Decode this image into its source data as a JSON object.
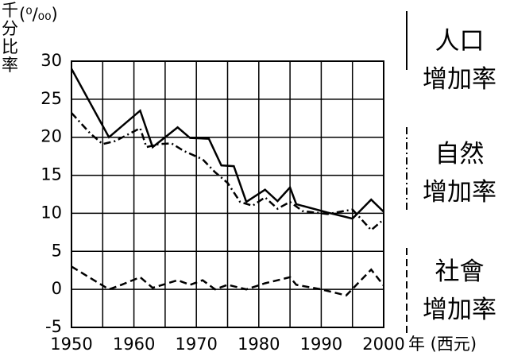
{
  "chart_data": {
    "type": "line",
    "y_label": "千分比率",
    "y_unit": "(⁰/₀₀)",
    "x_label": "年 (西元)",
    "xlim": [
      1950,
      2000
    ],
    "xticks": [
      1950,
      1960,
      1970,
      1980,
      1990,
      2000
    ],
    "x_minor_ticks": [
      1955,
      1965,
      1975,
      1985,
      1995
    ],
    "ylim": [
      -5,
      30
    ],
    "yticks": [
      -5,
      0,
      5,
      10,
      15,
      20,
      25,
      30
    ],
    "grid": true,
    "series": [
      {
        "name": "人口\n增加率",
        "color": "#000000",
        "dash": "solid",
        "x": [
          1950,
          1956,
          1961,
          1963,
          1967,
          1969,
          1972,
          1974,
          1976,
          1978,
          1981,
          1983,
          1985,
          1986,
          1991,
          1995,
          1998,
          2000
        ],
        "values": [
          29,
          20,
          23.5,
          18.7,
          21.3,
          19.9,
          19.8,
          16.3,
          16.2,
          11.5,
          13.1,
          11.6,
          13.4,
          11.2,
          10.1,
          9.3,
          11.8,
          10.2
        ]
      },
      {
        "name": "自然\n增加率",
        "color": "#000000",
        "dash": "dashdot",
        "x": [
          1950,
          1953,
          1955,
          1957,
          1961,
          1962,
          1964,
          1966,
          1968,
          1971,
          1973,
          1975,
          1977,
          1979,
          1981,
          1983,
          1985,
          1987,
          1991,
          1995,
          1998,
          2000
        ],
        "values": [
          23.2,
          20.5,
          19.1,
          19.5,
          21.2,
          18.7,
          19.1,
          19.2,
          18.2,
          17.1,
          15.4,
          14,
          11.5,
          11,
          12.1,
          10.6,
          11.5,
          10.3,
          9.9,
          10.5,
          7.8,
          9.2
        ]
      },
      {
        "name": "社會\n增加率",
        "color": "#000000",
        "dash": "dashed",
        "x": [
          1950,
          1953,
          1956,
          1958,
          1961,
          1963,
          1967,
          1969,
          1971,
          1973,
          1975,
          1978,
          1981,
          1985,
          1986,
          1990,
          1994,
          1998,
          2000
        ],
        "values": [
          3,
          1.5,
          0,
          0.6,
          1.6,
          0.2,
          1.2,
          0.6,
          1.2,
          0,
          0.6,
          0,
          0.8,
          1.6,
          0.6,
          0,
          -0.8,
          2.6,
          0.5
        ]
      }
    ]
  }
}
